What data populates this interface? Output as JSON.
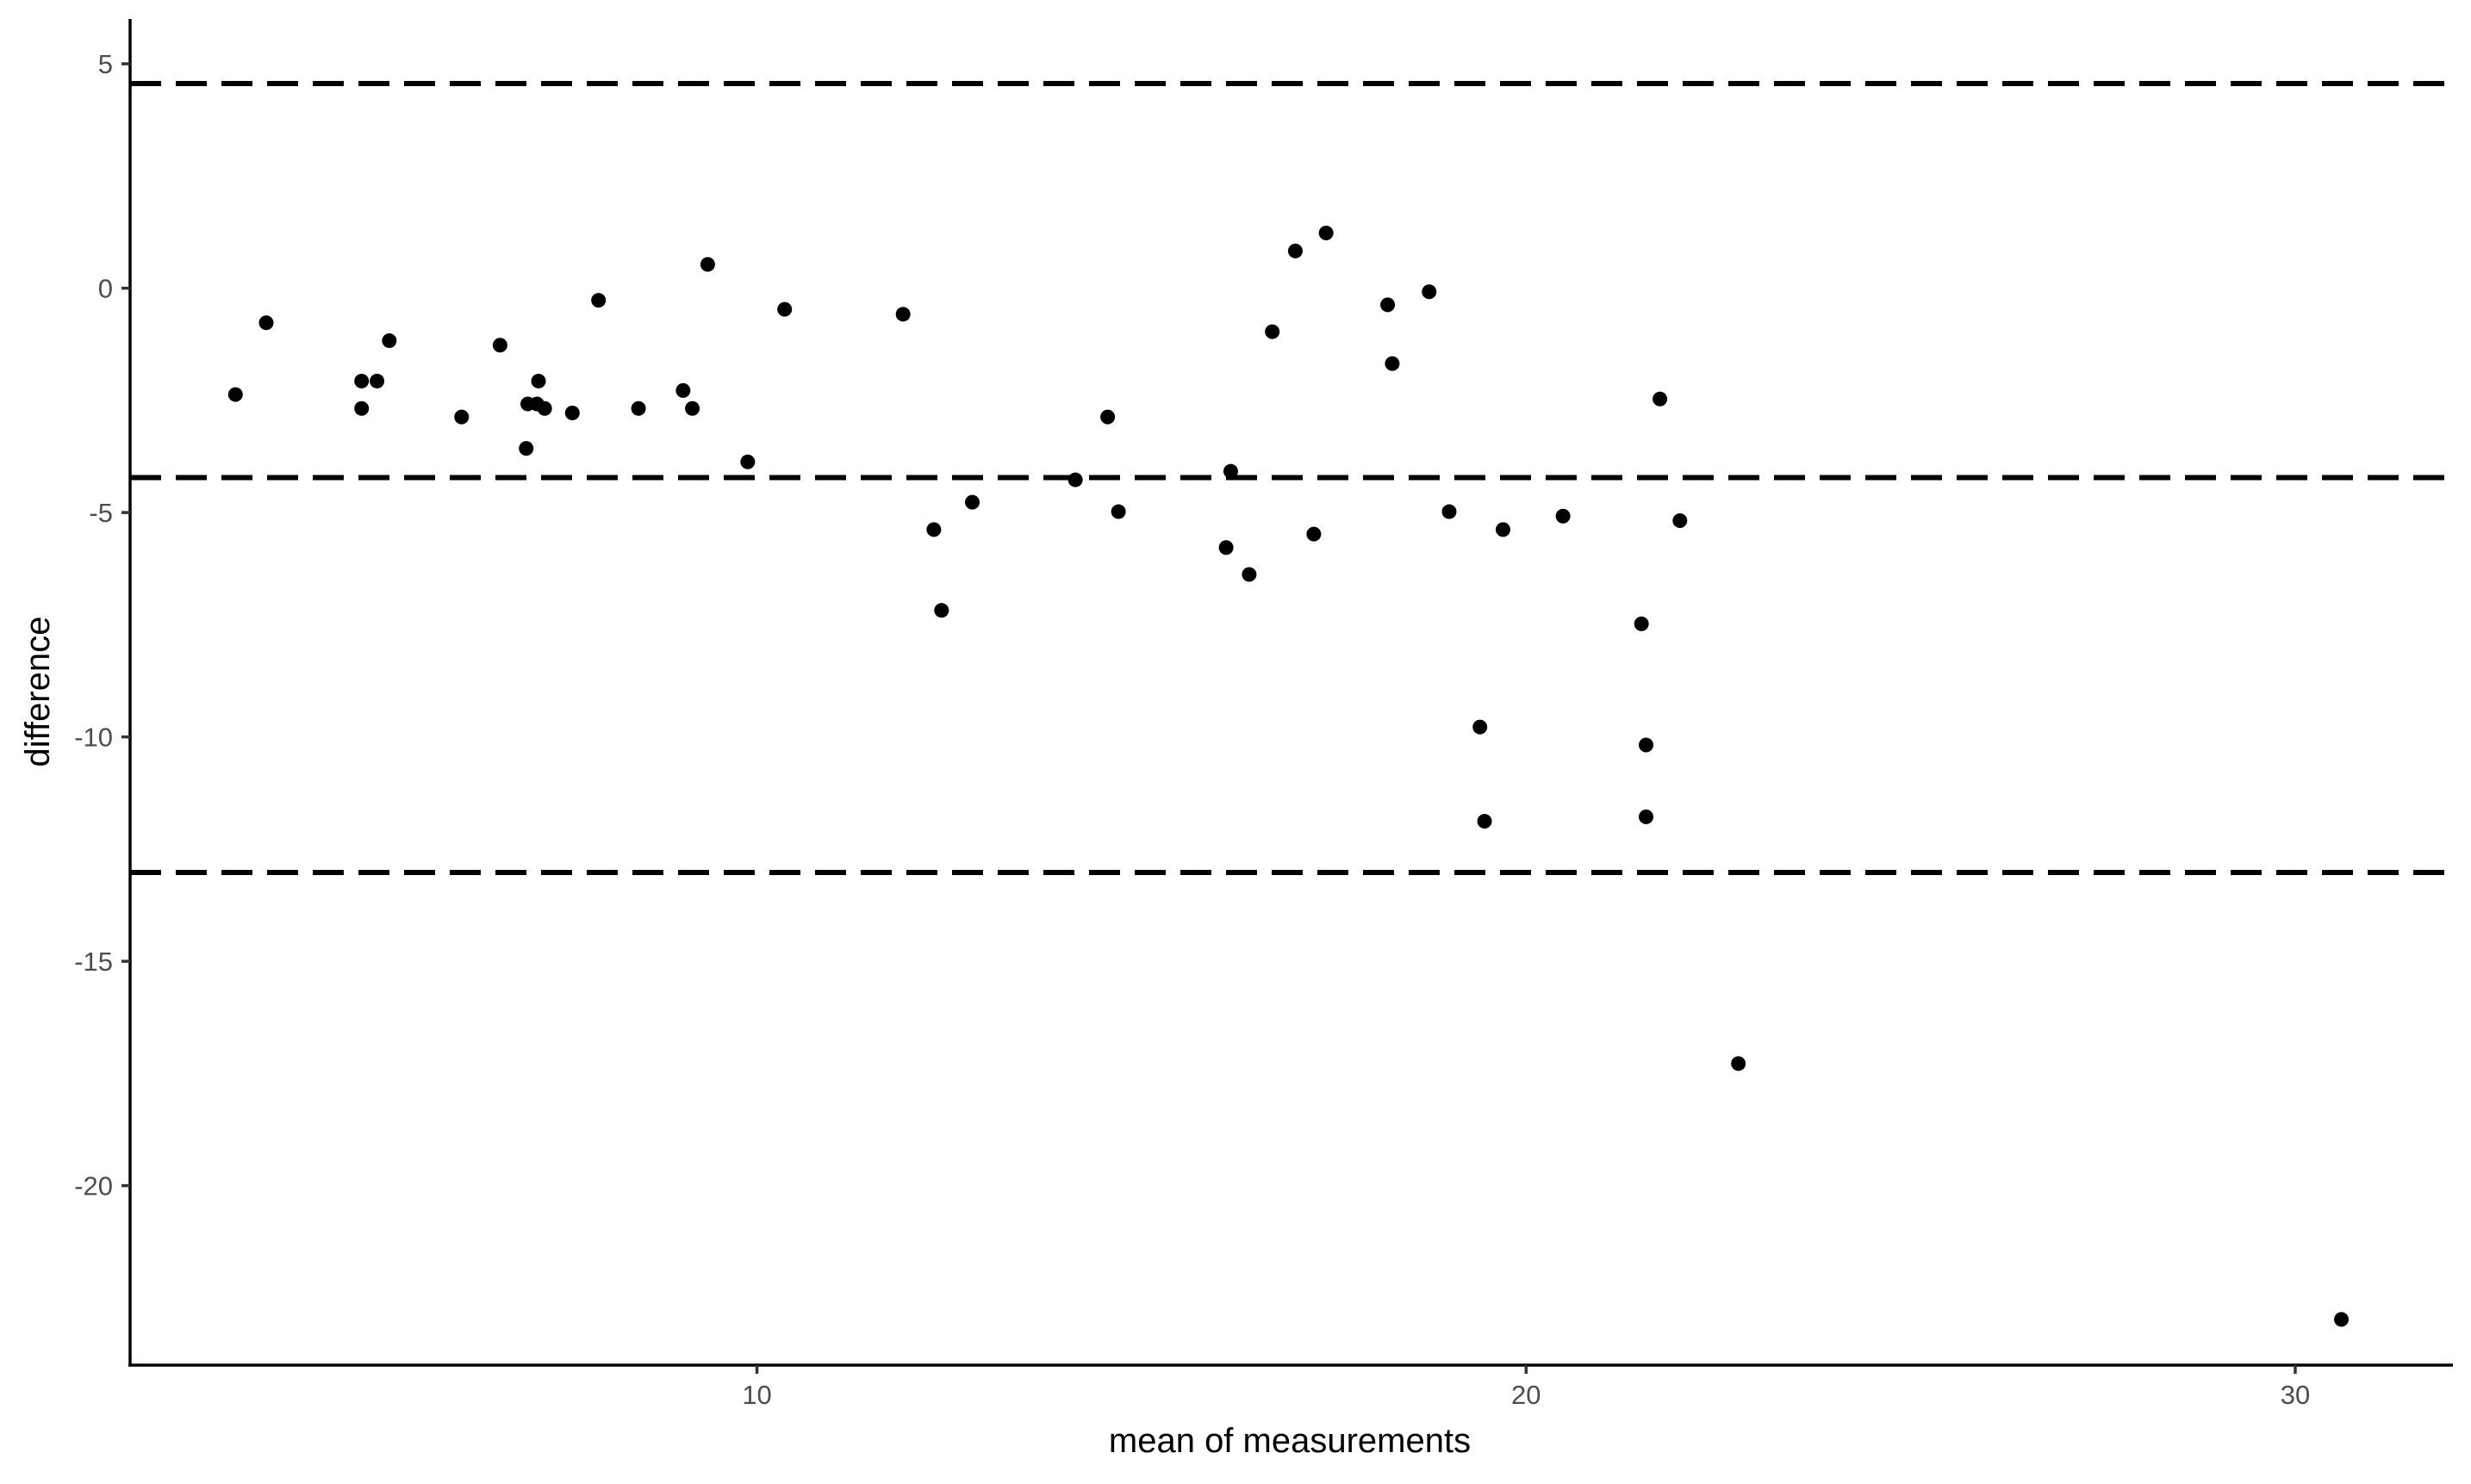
{
  "chart_data": {
    "type": "scatter",
    "title": "",
    "xlabel": "mean of measurements",
    "ylabel": "difference",
    "xlim": [
      1.85,
      32.05
    ],
    "ylim": [
      -24.0,
      6.0
    ],
    "x_ticks": [
      10,
      20,
      30
    ],
    "y_ticks": [
      5,
      0,
      -5,
      -10,
      -15,
      -20
    ],
    "grid": false,
    "legend": "none",
    "colors": {
      "points": "#000000",
      "reference_lines": "#000000",
      "axes": "#000000",
      "tick_labels": "#4d4d4d"
    },
    "reference_lines": [
      {
        "y": 4.56,
        "style": "dashed"
      },
      {
        "y": -4.22,
        "style": "dashed"
      },
      {
        "y": -13.02,
        "style": "dashed"
      }
    ],
    "points": [
      {
        "x": 3.22,
        "y": -2.37
      },
      {
        "x": 3.62,
        "y": -0.77
      },
      {
        "x": 4.86,
        "y": -2.07
      },
      {
        "x": 4.86,
        "y": -2.68
      },
      {
        "x": 5.06,
        "y": -2.07
      },
      {
        "x": 5.22,
        "y": -1.17
      },
      {
        "x": 6.16,
        "y": -2.87
      },
      {
        "x": 6.66,
        "y": -1.27
      },
      {
        "x": 7.0,
        "y": -3.57
      },
      {
        "x": 7.02,
        "y": -2.58
      },
      {
        "x": 7.14,
        "y": -2.58
      },
      {
        "x": 7.16,
        "y": -2.07
      },
      {
        "x": 7.24,
        "y": -2.68
      },
      {
        "x": 7.6,
        "y": -2.78
      },
      {
        "x": 7.94,
        "y": -0.27
      },
      {
        "x": 8.46,
        "y": -2.68
      },
      {
        "x": 9.04,
        "y": -2.28
      },
      {
        "x": 9.16,
        "y": -2.68
      },
      {
        "x": 9.36,
        "y": 0.53
      },
      {
        "x": 9.88,
        "y": -3.87
      },
      {
        "x": 10.36,
        "y": -0.47
      },
      {
        "x": 11.9,
        "y": -0.58
      },
      {
        "x": 12.3,
        "y": -5.38
      },
      {
        "x": 12.4,
        "y": -7.18
      },
      {
        "x": 12.8,
        "y": -4.77
      },
      {
        "x": 14.14,
        "y": -4.27
      },
      {
        "x": 14.56,
        "y": -2.87
      },
      {
        "x": 14.7,
        "y": -4.98
      },
      {
        "x": 16.1,
        "y": -5.78
      },
      {
        "x": 16.16,
        "y": -4.08
      },
      {
        "x": 16.4,
        "y": -6.38
      },
      {
        "x": 16.7,
        "y": -0.97
      },
      {
        "x": 17.0,
        "y": 0.83
      },
      {
        "x": 17.24,
        "y": -5.48
      },
      {
        "x": 17.4,
        "y": 1.23
      },
      {
        "x": 18.2,
        "y": -0.37
      },
      {
        "x": 18.26,
        "y": -1.68
      },
      {
        "x": 18.74,
        "y": -0.08
      },
      {
        "x": 19.0,
        "y": -4.98
      },
      {
        "x": 19.4,
        "y": -9.78
      },
      {
        "x": 19.46,
        "y": -11.88
      },
      {
        "x": 19.7,
        "y": -5.38
      },
      {
        "x": 20.48,
        "y": -5.08
      },
      {
        "x": 21.5,
        "y": -7.48
      },
      {
        "x": 21.56,
        "y": -10.18
      },
      {
        "x": 21.56,
        "y": -11.78
      },
      {
        "x": 21.74,
        "y": -2.47
      },
      {
        "x": 22.0,
        "y": -5.18
      },
      {
        "x": 22.76,
        "y": -17.28
      },
      {
        "x": 30.6,
        "y": -22.98
      }
    ]
  }
}
